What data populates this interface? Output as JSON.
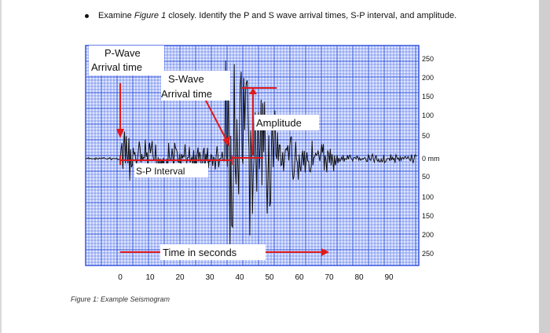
{
  "document": {
    "instruction_prefix": "Examine ",
    "instruction_figref": "Figure 1",
    "instruction_suffix": " closely.  Identify the P and S wave arrival times, S-P interval, and amplitude.",
    "caption": "Figure 1: Example Seismogram"
  },
  "figure": {
    "labels": {
      "p_wave_line1": "P-Wave",
      "p_wave_line2": "Arrival time",
      "s_wave_line1": "S-Wave",
      "s_wave_line2": "Arrival time",
      "amplitude": "Amplitude",
      "sp_interval": "S-P Interval",
      "time_axis": "Time in seconds"
    },
    "x_ticks": [
      "0",
      "10",
      "20",
      "30",
      "40",
      "50",
      "60",
      "70",
      "80",
      "90"
    ],
    "y_ticks_top": [
      "250",
      "200",
      "150",
      "100",
      "50"
    ],
    "y_zero": "0 mm",
    "y_ticks_bottom": [
      "50",
      "100",
      "150",
      "200",
      "250"
    ],
    "colors": {
      "grid": "#3355dd",
      "grid_bg": "#dfe6ff",
      "trace": "#111111",
      "annotation": "#e0191b"
    }
  }
}
